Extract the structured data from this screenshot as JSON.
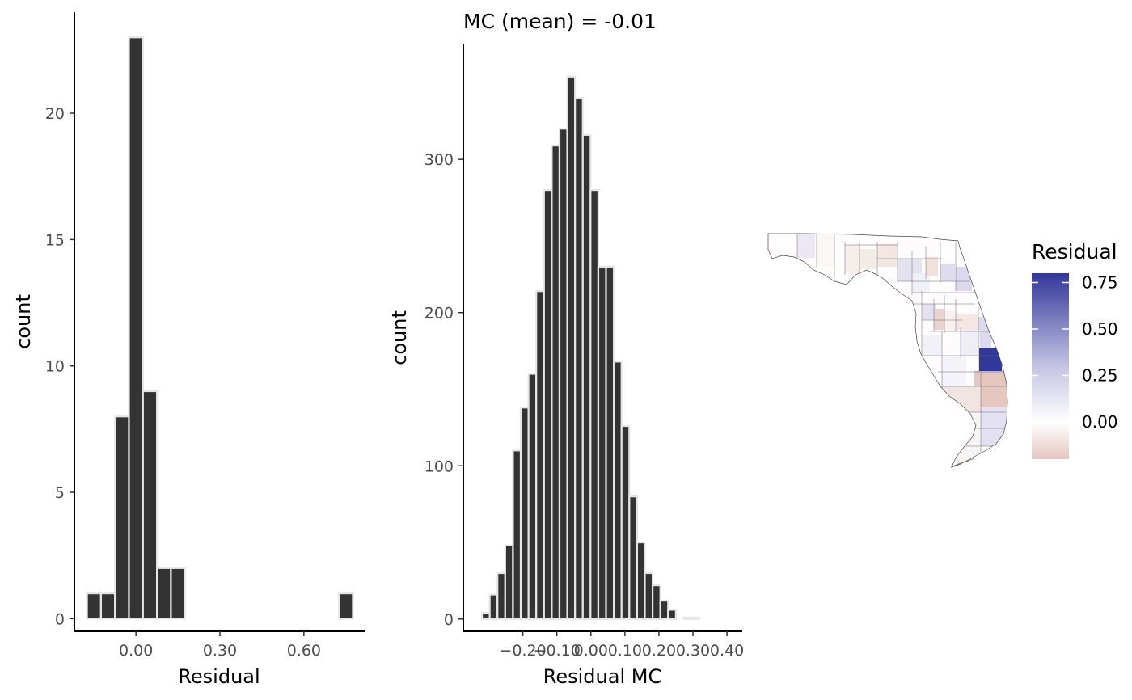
{
  "chart_data": [
    {
      "type": "bar",
      "subtype": "histogram",
      "title": "",
      "xlabel": "Residual",
      "ylabel": "count",
      "xlim": [
        -0.22,
        0.82
      ],
      "ylim": [
        -0.5,
        24
      ],
      "xticks": [
        0,
        0.3,
        0.6
      ],
      "xtick_labels": [
        "0.00",
        "0.30",
        "0.60"
      ],
      "yticks": [
        0,
        5,
        10,
        15,
        20
      ],
      "ytick_labels": [
        "0",
        "5",
        "10",
        "15",
        "20"
      ],
      "bin_width": 0.05,
      "bins": [
        {
          "x": -0.15,
          "count": 1
        },
        {
          "x": -0.1,
          "count": 1
        },
        {
          "x": -0.05,
          "count": 8
        },
        {
          "x": 0.0,
          "count": 23
        },
        {
          "x": 0.05,
          "count": 9
        },
        {
          "x": 0.1,
          "count": 2
        },
        {
          "x": 0.15,
          "count": 2
        },
        {
          "x": 0.2,
          "count": 0
        },
        {
          "x": 0.25,
          "count": 0
        },
        {
          "x": 0.3,
          "count": 0
        },
        {
          "x": 0.35,
          "count": 0
        },
        {
          "x": 0.4,
          "count": 0
        },
        {
          "x": 0.45,
          "count": 0
        },
        {
          "x": 0.5,
          "count": 0
        },
        {
          "x": 0.55,
          "count": 0
        },
        {
          "x": 0.6,
          "count": 0
        },
        {
          "x": 0.65,
          "count": 0
        },
        {
          "x": 0.7,
          "count": 0
        },
        {
          "x": 0.75,
          "count": 1
        }
      ],
      "grid": false,
      "bar_fill": "#333333",
      "bar_outline": "#e6e6e6"
    },
    {
      "type": "bar",
      "subtype": "histogram",
      "title": "MC (mean) = -0.01",
      "xlabel": "Residual MC",
      "ylabel": "count",
      "xlim": [
        -0.375,
        0.445
      ],
      "ylim": [
        -8,
        375
      ],
      "xticks": [
        -0.2,
        -0.1,
        0,
        0.1,
        0.2,
        0.3,
        0.4
      ],
      "xtick_labels": [
        "−0.20",
        "−0.10",
        "0.00",
        "0.10",
        "0.20",
        "0.30",
        "0.40"
      ],
      "yticks": [
        0,
        100,
        200,
        300
      ],
      "ytick_labels": [
        "0",
        "100",
        "200",
        "300"
      ],
      "bin_width": 0.0228,
      "bin_start": -0.3544,
      "counts": [
        0,
        0,
        4,
        16,
        30,
        48,
        110,
        138,
        160,
        214,
        280,
        309,
        320,
        354,
        340,
        316,
        280,
        230,
        230,
        168,
        126,
        80,
        50,
        30,
        22,
        12,
        6,
        0,
        1,
        1
      ],
      "grid": false,
      "bar_fill": "#333333",
      "bar_outline": "#e6e6e6"
    },
    {
      "type": "heatmap",
      "subtype": "choropleth map",
      "legend": {
        "title": "Residual",
        "placement": "right",
        "ticks": [
          0.75,
          0.5,
          0.25,
          0
        ],
        "tick_labels": [
          "0.75",
          "0.50",
          "0.25",
          "0.00"
        ],
        "range": [
          -0.2,
          0.8
        ],
        "colors": {
          "low": "#e5c7c0",
          "mid": "#ffffff",
          "high": "#32379a"
        }
      },
      "grid": false
    }
  ]
}
